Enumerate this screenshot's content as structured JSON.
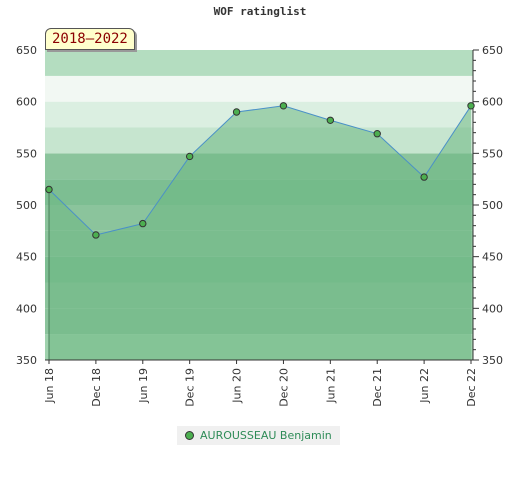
{
  "header": {
    "title": "WOF ratinglist",
    "badge": "2018–2022"
  },
  "chart_data": {
    "type": "area",
    "title": "WOF ratinglist",
    "ylim": [
      350,
      650
    ],
    "yticks": [
      350,
      400,
      450,
      500,
      550,
      600,
      650
    ],
    "categories": [
      "Jun 18",
      "Dec 18",
      "Jun 19",
      "Dec 19",
      "Jun 20",
      "Dec 20",
      "Jun 21",
      "Dec 21",
      "Jun 22",
      "Dec 22"
    ],
    "series": [
      {
        "name": "AUROUSSEAU Benjamin",
        "values": [
          515,
          471,
          482,
          547,
          590,
          596,
          582,
          569,
          527,
          596
        ]
      }
    ],
    "grid": true,
    "legend": "bottom",
    "colors": {
      "line": "#4a90c8",
      "fill": "#7dc393",
      "marker": "#4caf50",
      "band_dark": "#8bc49c",
      "band_light": "#f2f8f3"
    }
  },
  "legend": {
    "label": "AUROUSSEAU Benjamin"
  }
}
